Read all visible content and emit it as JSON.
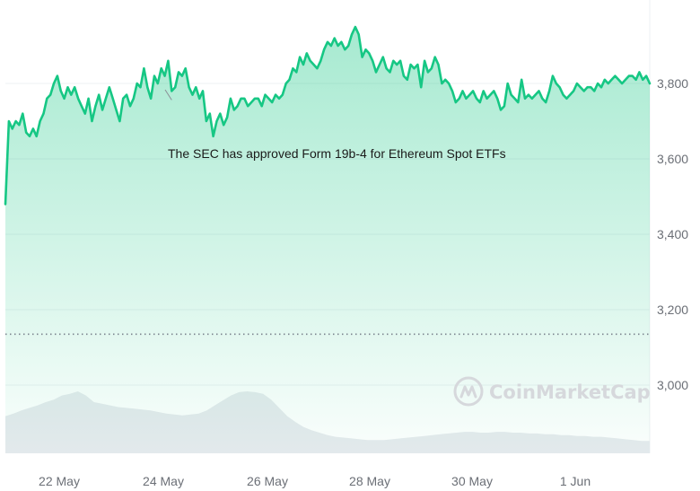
{
  "chart_data": {
    "type": "area",
    "title": "",
    "xlabel": "",
    "ylabel": "",
    "x_ticks": [
      "22 May",
      "24 May",
      "26 May",
      "28 May",
      "30 May",
      "1 Jun"
    ],
    "y_ticks": [
      "3,000",
      "3,200",
      "3,400",
      "3,600",
      "3,800"
    ],
    "ylim": [
      2850,
      3950
    ],
    "grid": true,
    "reference_line": 3135,
    "series": [
      {
        "values": [
          3480,
          3700,
          3680,
          3700,
          3690,
          3720,
          3670,
          3660,
          3680,
          3660,
          3700,
          3720,
          3760,
          3770,
          3800,
          3820,
          3780,
          3760,
          3790,
          3770,
          3790,
          3760,
          3740,
          3720,
          3760,
          3700,
          3740,
          3770,
          3730,
          3760,
          3790,
          3760,
          3730,
          3700,
          3760,
          3770,
          3740,
          3760,
          3800,
          3790,
          3840,
          3790,
          3760,
          3820,
          3800,
          3840,
          3820,
          3860,
          3780,
          3790,
          3830,
          3820,
          3840,
          3790,
          3770,
          3790,
          3760,
          3780,
          3700,
          3720,
          3660,
          3700,
          3720,
          3690,
          3710,
          3760,
          3730,
          3740,
          3760,
          3760,
          3740,
          3750,
          3760,
          3760,
          3740,
          3770,
          3760,
          3750,
          3770,
          3760,
          3770,
          3800,
          3810,
          3840,
          3830,
          3870,
          3850,
          3880,
          3860,
          3850,
          3840,
          3860,
          3890,
          3910,
          3900,
          3920,
          3900,
          3910,
          3890,
          3900,
          3930,
          3950,
          3930,
          3870,
          3890,
          3880,
          3860,
          3830,
          3850,
          3870,
          3840,
          3830,
          3860,
          3850,
          3860,
          3820,
          3810,
          3850,
          3840,
          3850,
          3790,
          3860,
          3830,
          3840,
          3870,
          3850,
          3800,
          3810,
          3800,
          3780,
          3750,
          3760,
          3780,
          3760,
          3770,
          3780,
          3760,
          3750,
          3780,
          3760,
          3770,
          3780,
          3760,
          3730,
          3740,
          3800,
          3770,
          3760,
          3750,
          3810,
          3760,
          3770,
          3760,
          3770,
          3780,
          3760,
          3750,
          3780,
          3820,
          3800,
          3790,
          3770,
          3760,
          3770,
          3780,
          3800,
          3790,
          3780,
          3790,
          3790,
          3780,
          3800,
          3790,
          3810,
          3800,
          3810,
          3820,
          3810,
          3800,
          3810,
          3820,
          3820,
          3810,
          3830,
          3810,
          3820,
          3800
        ],
        "color": "#16c784"
      }
    ],
    "volume": [
      0.45,
      0.48,
      0.52,
      0.55,
      0.58,
      0.62,
      0.65,
      0.7,
      0.72,
      0.75,
      0.7,
      0.62,
      0.6,
      0.58,
      0.56,
      0.55,
      0.54,
      0.53,
      0.52,
      0.5,
      0.48,
      0.47,
      0.46,
      0.47,
      0.48,
      0.52,
      0.58,
      0.64,
      0.7,
      0.74,
      0.75,
      0.74,
      0.72,
      0.65,
      0.55,
      0.45,
      0.38,
      0.32,
      0.28,
      0.25,
      0.22,
      0.2,
      0.19,
      0.18,
      0.17,
      0.16,
      0.16,
      0.16,
      0.17,
      0.18,
      0.19,
      0.2,
      0.21,
      0.22,
      0.23,
      0.24,
      0.25,
      0.26,
      0.26,
      0.25,
      0.25,
      0.26,
      0.26,
      0.25,
      0.25,
      0.24,
      0.24,
      0.23,
      0.23,
      0.22,
      0.22,
      0.21,
      0.21,
      0.2,
      0.2,
      0.19,
      0.18,
      0.17,
      0.16,
      0.15,
      0.15
    ],
    "annotations": [
      {
        "text": "The SEC has approved Form 19b-4 for Ethereum Spot ETFs",
        "x_index": 48
      }
    ]
  },
  "watermark": {
    "text": "CoinMarketCap",
    "icon": "coinmarketcap-logo-icon"
  },
  "colors": {
    "line": "#16c784",
    "area_top": "#16c784",
    "grid": "#eef0f3",
    "volume": "#e7eaee",
    "reference": "#7d8590"
  }
}
